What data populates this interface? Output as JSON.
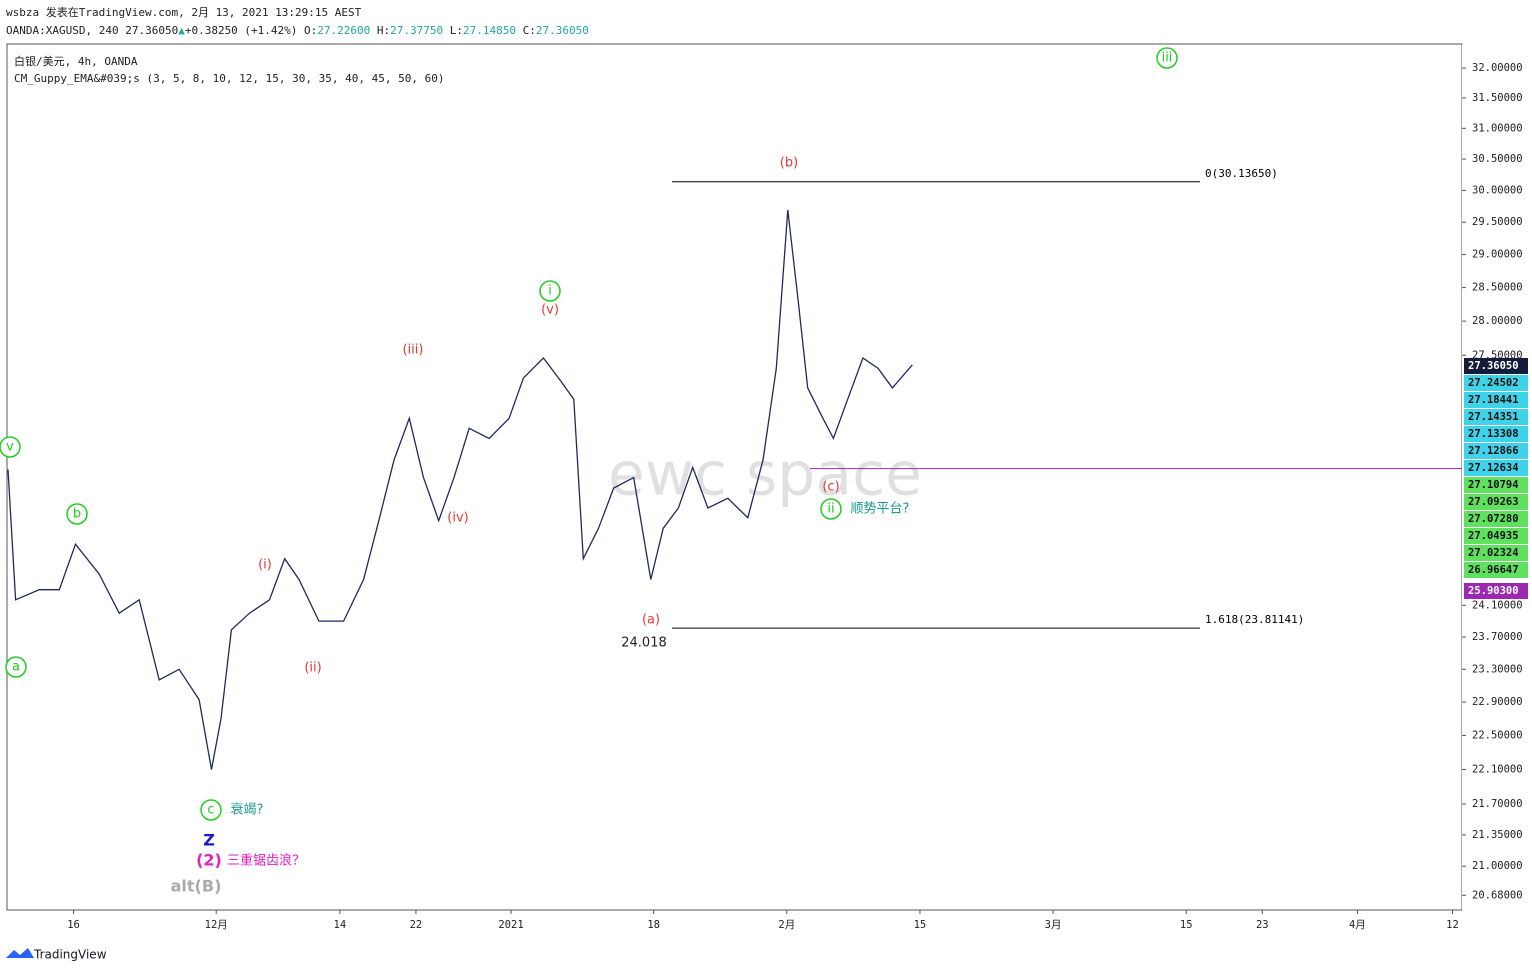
{
  "header": {
    "title": "wsbza 发表在TradingView.com, 2月 13, 2021 13:29:15 AEST",
    "quote": [
      "OANDA:XAGUSD, 240 ",
      "27.36050",
      "▲",
      "+0.38250 (+1.42%) ",
      "O:",
      "27.22600",
      " H:",
      "27.37750",
      " L:",
      "27.14850",
      " C:",
      "27.36050"
    ],
    "legend": [
      "白银/美元, 4h, OANDA",
      "CM_Guppy_EMA&#039;s (3, 5, 8, 10, 12, 15, 30, 35, 40, 45, 50, 60)"
    ],
    "watermark": "ewc space"
  },
  "chart_data": {
    "type": "line",
    "color": "#1f2a5c",
    "log_scale": true,
    "x": [
      -6.9,
      -6.1,
      -3.6,
      -1.5,
      0.2,
      2.7,
      4.8,
      6.9,
      9.0,
      11.1,
      13.2,
      14.5,
      15.5,
      16.6,
      18.5,
      20.6,
      22.2,
      23.7,
      25.8,
      28.4,
      30.5,
      32.1,
      33.7,
      35.3,
      36.8,
      38.4,
      40.0,
      41.6,
      43.7,
      45.8,
      47.3,
      49.4,
      51.0,
      52.6,
      53.6,
      55.2,
      56.8,
      58.9,
      60.7,
      62.0,
      63.6,
      65.1,
      66.7,
      68.8,
      70.9,
      72.5,
      73.9,
      75.1,
      76.2,
      77.2,
      78.8,
      79.9,
      81.4,
      83.0,
      84.6,
      86.1,
      88.2
    ],
    "values": [
      25.89,
      24.17,
      24.3,
      24.3,
      24.89,
      24.5,
      24.0,
      24.17,
      23.17,
      23.3,
      22.93,
      22.1,
      22.7,
      23.79,
      24.0,
      24.17,
      24.7,
      24.43,
      23.9,
      23.9,
      24.43,
      25.2,
      26.02,
      26.6,
      25.78,
      25.2,
      25.78,
      26.46,
      26.32,
      26.6,
      27.17,
      27.46,
      27.17,
      26.87,
      24.7,
      25.1,
      25.64,
      25.78,
      24.43,
      25.1,
      25.37,
      25.92,
      25.37,
      25.5,
      25.24,
      26.02,
      27.31,
      29.69,
      28.3,
      27.03,
      26.6,
      26.32,
      26.87,
      27.46,
      27.31,
      27.03,
      27.3605
    ],
    "xlim": [
      -7,
      146
    ],
    "xticks": [
      {
        "value": 0,
        "label": "16"
      },
      {
        "value": 15,
        "label": "12月"
      },
      {
        "value": 28,
        "label": "14"
      },
      {
        "value": 36,
        "label": "22"
      },
      {
        "value": 46,
        "label": "2021"
      },
      {
        "value": 61,
        "label": "18"
      },
      {
        "value": 75,
        "label": "2月"
      },
      {
        "value": 89,
        "label": "15"
      },
      {
        "value": 103,
        "label": "3月"
      },
      {
        "value": 117,
        "label": "15"
      },
      {
        "value": 125,
        "label": "23"
      },
      {
        "value": 135,
        "label": "4月"
      },
      {
        "value": 145,
        "label": "12"
      }
    ],
    "ylim": [
      20.52,
      32.41
    ],
    "yticks": [
      {
        "value": 32,
        "label": "32.00000"
      },
      {
        "value": 31.5,
        "label": "31.50000"
      },
      {
        "value": 31,
        "label": "31.00000"
      },
      {
        "value": 30.5,
        "label": "30.50000"
      },
      {
        "value": 30,
        "label": "30.00000"
      },
      {
        "value": 29.5,
        "label": "29.50000"
      },
      {
        "value": 29,
        "label": "29.00000"
      },
      {
        "value": 28.5,
        "label": "28.50000"
      },
      {
        "value": 28,
        "label": "28.00000"
      },
      {
        "value": 27.5,
        "label": "27.50000"
      },
      {
        "value": 24.1,
        "label": "24.10000"
      },
      {
        "value": 23.7,
        "label": "23.70000"
      },
      {
        "value": 23.3,
        "label": "23.30000"
      },
      {
        "value": 22.9,
        "label": "22.90000"
      },
      {
        "value": 22.5,
        "label": "22.50000"
      },
      {
        "value": 22.1,
        "label": "22.10000"
      },
      {
        "value": 21.7,
        "label": "21.70000"
      },
      {
        "value": 21.35,
        "label": "21.35000"
      },
      {
        "value": 21,
        "label": "21.00000"
      },
      {
        "value": 20.68,
        "label": "20.68000"
      }
    ],
    "price_labels": [
      {
        "value": 27.3605,
        "label": "27.36050",
        "color": "#131d3b"
      },
      {
        "value": 27.24502,
        "label": "27.24502",
        "color": "#3fd3ea"
      },
      {
        "value": 27.18441,
        "label": "27.18441",
        "color": "#3fd3ea"
      },
      {
        "value": 27.14351,
        "label": "27.14351",
        "color": "#3fd3ea"
      },
      {
        "value": 27.13308,
        "label": "27.13308",
        "color": "#3fd3ea"
      },
      {
        "value": 27.12866,
        "label": "27.12866",
        "color": "#3fd3ea"
      },
      {
        "value": 27.12634,
        "label": "27.12634",
        "color": "#3fd3ea"
      },
      {
        "value": 27.10794,
        "label": "27.10794",
        "color": "#5fe05f"
      },
      {
        "value": 27.09263,
        "label": "27.09263",
        "color": "#5fe05f"
      },
      {
        "value": 27.0728,
        "label": "27.07280",
        "color": "#5fe05f"
      },
      {
        "value": 27.04935,
        "label": "27.04935",
        "color": "#5fe05f"
      },
      {
        "value": 27.02324,
        "label": "27.02324",
        "color": "#5fe05f"
      },
      {
        "value": 26.96647,
        "label": "26.96647",
        "color": "#5fe05f"
      },
      {
        "value": 25.903,
        "label": "25.90300",
        "color": "#9c27b0"
      }
    ],
    "levels": [
      {
        "value": 30.1365,
        "label": "0(30.13650)",
        "color": "#000000"
      },
      {
        "value": 23.81141,
        "label": "1.618(23.81141)",
        "color": "#000000"
      },
      {
        "value": 25.903,
        "color": "#9c27b0"
      }
    ],
    "annotations": [
      {
        "text": "iii",
        "color": "#22cc22",
        "circled": true
      },
      {
        "text": "(b)",
        "color": "#e53935"
      },
      {
        "text": "i",
        "color": "#22cc22",
        "circled": true
      },
      {
        "text": "(v)",
        "color": "#e53935"
      },
      {
        "text": "(iii)",
        "color": "#e53935"
      },
      {
        "text": "(iv)",
        "color": "#e53935"
      },
      {
        "text": "(i)",
        "color": "#e53935"
      },
      {
        "text": "(ii)",
        "color": "#e53935"
      },
      {
        "text": "(a)",
        "color": "#e53935"
      },
      {
        "text": "24.018",
        "color": "#222222"
      },
      {
        "text": "(c)",
        "color": "#e53935"
      },
      {
        "text": "ii",
        "color": "#22cc22",
        "circled": true
      },
      {
        "text": "顺势平台?",
        "color": "#1a9a8a"
      },
      {
        "text": "b",
        "color": "#22cc22",
        "circled": true
      },
      {
        "text": "a",
        "color": "#22cc22",
        "circled": true
      },
      {
        "text": "v",
        "color": "#22cc22",
        "circled": true
      },
      {
        "text": "c",
        "color": "#22cc22",
        "circled": true
      },
      {
        "text": "衰竭?",
        "color": "#1a9a8a"
      },
      {
        "text": "Z",
        "color": "#1a1acc"
      },
      {
        "text": "(2)",
        "color": "#e020c0"
      },
      {
        "text": "三重锯齿浪？",
        "color": "#e020c0"
      },
      {
        "text": "alt(B)",
        "color": "#aaaaaa"
      }
    ]
  },
  "footer": {
    "brand": "TradingView"
  }
}
